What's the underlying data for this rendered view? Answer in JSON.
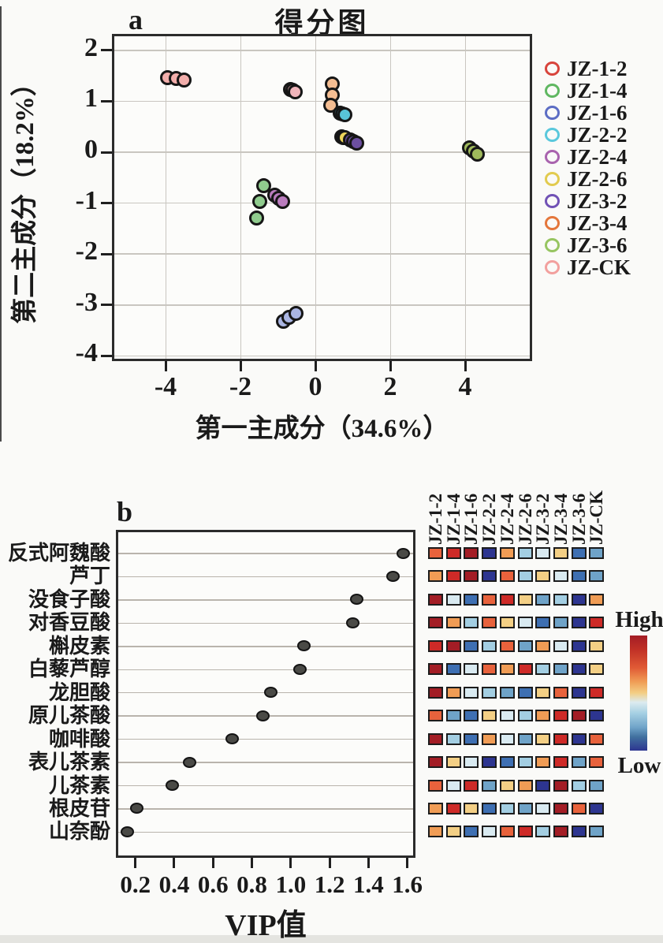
{
  "panel_a": {
    "label": "a",
    "title": "得分图",
    "x_axis": {
      "title": "第一主成分（34.6%）"
    },
    "y_axis": {
      "title": "第二主成分（18.2%）"
    },
    "legend": [
      {
        "label": "JZ-1-2",
        "color": "#D8443C"
      },
      {
        "label": "JZ-1-4",
        "color": "#5FB761"
      },
      {
        "label": "JZ-1-6",
        "color": "#5C6DC4"
      },
      {
        "label": "JZ-2-2",
        "color": "#5AC8DC"
      },
      {
        "label": "JZ-2-4",
        "color": "#A963AE"
      },
      {
        "label": "JZ-2-6",
        "color": "#E2CB4F"
      },
      {
        "label": "JZ-3-2",
        "color": "#7152B5"
      },
      {
        "label": "JZ-3-4",
        "color": "#E4763B"
      },
      {
        "label": "JZ-3-6",
        "color": "#97C561"
      },
      {
        "label": "JZ-CK",
        "color": "#F2A09E"
      }
    ]
  },
  "panel_b": {
    "label": "b",
    "x_axis": {
      "title": "VIP值"
    },
    "colorbar": {
      "high": "High",
      "low": "Low"
    }
  },
  "chart_data": [
    {
      "type": "scatter",
      "title": "得分图",
      "xlabel": "第一主成分（34.6%）",
      "ylabel": "第二主成分（18.2%）",
      "xlim": [
        -5.4,
        5.8
      ],
      "ylim": [
        -4.1,
        2.3
      ],
      "xticks": [
        -4,
        -2,
        0,
        2,
        4
      ],
      "yticks": [
        2,
        1,
        0,
        -1,
        -2,
        -3,
        -4
      ],
      "xtick_labels": [
        "-4",
        "-2",
        "0",
        "2",
        "4"
      ],
      "ytick_labels": [
        "2",
        "1",
        "0",
        "-1",
        "-2",
        "-3",
        "-4"
      ],
      "grid": true,
      "legend_position": "right",
      "series": [
        {
          "name": "JZ-CK",
          "ring": "#F2A09E",
          "fill": "#F2AEAB",
          "points": [
            [
              -3.95,
              1.47
            ],
            [
              -3.72,
              1.44
            ],
            [
              -3.5,
              1.41
            ]
          ]
        },
        {
          "name": "JZ-1-2",
          "ring": "#D8443C",
          "fill": "#F0B4BA",
          "points": [
            [
              -0.66,
              1.23
            ],
            [
              -0.6,
              1.21
            ],
            [
              -0.54,
              1.19
            ]
          ]
        },
        {
          "name": "JZ-3-4",
          "ring": "#E4763B",
          "fill": "#F4BD92",
          "points": [
            [
              0.46,
              1.34
            ],
            [
              0.46,
              1.13
            ],
            [
              0.42,
              0.92
            ]
          ]
        },
        {
          "name": "JZ-2-2",
          "ring": "#5AC8DC",
          "fill": "#58C4D8",
          "points": [
            [
              0.66,
              0.77
            ],
            [
              0.72,
              0.75
            ],
            [
              0.78,
              0.73
            ]
          ]
        },
        {
          "name": "JZ-2-6",
          "ring": "#E2CB4F",
          "fill": "#EDD45A",
          "points": [
            [
              0.7,
              0.3
            ],
            [
              0.74,
              0.29
            ],
            [
              0.78,
              0.28
            ]
          ]
        },
        {
          "name": "JZ-3-2",
          "ring": "#7152B5",
          "fill": "#6C4FA0",
          "points": [
            [
              0.94,
              0.24
            ],
            [
              1.02,
              0.21
            ],
            [
              1.1,
              0.18
            ]
          ]
        },
        {
          "name": "JZ-3-6",
          "ring": "#97C561",
          "fill": "#9FB95C",
          "points": [
            [
              4.12,
              0.08
            ],
            [
              4.22,
              0.02
            ],
            [
              4.32,
              -0.04
            ]
          ]
        },
        {
          "name": "JZ-1-4",
          "ring": "#5FB761",
          "fill": "#90CC8E",
          "points": [
            [
              -1.38,
              -0.66
            ],
            [
              -1.48,
              -0.97
            ],
            [
              -1.57,
              -1.3
            ]
          ]
        },
        {
          "name": "JZ-2-4",
          "ring": "#A963AE",
          "fill": "#BA7CBE",
          "points": [
            [
              -1.08,
              -0.85
            ],
            [
              -0.98,
              -0.91
            ],
            [
              -0.88,
              -0.96
            ]
          ]
        },
        {
          "name": "JZ-1-6",
          "ring": "#5C6DC4",
          "fill": "#AAB5E2",
          "points": [
            [
              -0.85,
              -3.32
            ],
            [
              -0.7,
              -3.25
            ],
            [
              -0.52,
              -3.17
            ]
          ]
        }
      ]
    },
    {
      "type": "scatter",
      "xlabel": "VIP值",
      "categories": [
        "反式阿魏酸",
        "芦丁",
        "没食子酸",
        "对香豆酸",
        "槲皮素",
        "白藜芦醇",
        "龙胆酸",
        "原儿茶酸",
        "咖啡酸",
        "表儿茶素",
        "儿茶素",
        "根皮苷",
        "山奈酚"
      ],
      "values": [
        1.58,
        1.53,
        1.34,
        1.32,
        1.07,
        1.05,
        0.9,
        0.86,
        0.7,
        0.48,
        0.39,
        0.21,
        0.16
      ],
      "xticks": [
        0.2,
        0.4,
        0.6,
        0.8,
        1.0,
        1.2,
        1.4,
        1.6
      ],
      "xtick_labels": [
        "0.2",
        "0.4",
        "0.6",
        "0.8",
        "1.0",
        "1.2",
        "1.4",
        "1.6"
      ],
      "xlim": [
        0.1,
        1.75
      ],
      "grid": true,
      "dot_fill": "#4a4a46"
    },
    {
      "type": "heatmap",
      "columns": [
        "JZ-1-2",
        "JZ-1-4",
        "JZ-1-6",
        "JZ-2-2",
        "JZ-2-4",
        "JZ-2-6",
        "JZ-3-2",
        "JZ-3-4",
        "JZ-3-6",
        "JZ-CK"
      ],
      "rows": [
        "反式阿魏酸",
        "芦丁",
        "没食子酸",
        "对香豆酸",
        "槲皮素",
        "白藜芦醇",
        "龙胆酸",
        "原儿茶酸",
        "咖啡酸",
        "表儿茶素",
        "儿茶素",
        "根皮苷",
        "山奈酚"
      ],
      "palette": {
        "DR": "#A31D25",
        "R": "#CE2A27",
        "OR": "#E8623C",
        "O": "#F09C55",
        "T": "#F3CF85",
        "VL": "#D9EAF1",
        "LB": "#A3CEE2",
        "SB": "#6FA3C8",
        "MB": "#3E6FB2",
        "DB": "#2D3590"
      },
      "cells": [
        [
          "OR",
          "R",
          "DR",
          "DB",
          "O",
          "LB",
          "VL",
          "T",
          "MB",
          "SB"
        ],
        [
          "O",
          "R",
          "DR",
          "DB",
          "OR",
          "LB",
          "T",
          "VL",
          "MB",
          "SB"
        ],
        [
          "DR",
          "VL",
          "MB",
          "OR",
          "R",
          "T",
          "SB",
          "LB",
          "DB",
          "O"
        ],
        [
          "DR",
          "O",
          "LB",
          "OR",
          "T",
          "VL",
          "MB",
          "SB",
          "DB",
          "R"
        ],
        [
          "R",
          "DR",
          "MB",
          "LB",
          "OR",
          "SB",
          "O",
          "VL",
          "DB",
          "T"
        ],
        [
          "DR",
          "MB",
          "VL",
          "OR",
          "O",
          "R",
          "LB",
          "SB",
          "DB",
          "T"
        ],
        [
          "DR",
          "O",
          "VL",
          "LB",
          "SB",
          "MB",
          "T",
          "OR",
          "DB",
          "R"
        ],
        [
          "OR",
          "SB",
          "MB",
          "T",
          "VL",
          "LB",
          "O",
          "R",
          "DR",
          "DB"
        ],
        [
          "DR",
          "LB",
          "MB",
          "O",
          "VL",
          "SB",
          "T",
          "R",
          "DB",
          "OR"
        ],
        [
          "DR",
          "T",
          "VL",
          "DB",
          "MB",
          "LB",
          "O",
          "R",
          "SB",
          "OR"
        ],
        [
          "OR",
          "VL",
          "R",
          "SB",
          "T",
          "O",
          "DB",
          "DR",
          "LB",
          "SB"
        ],
        [
          "O",
          "R",
          "T",
          "MB",
          "LB",
          "SB",
          "VL",
          "DR",
          "OR",
          "DB"
        ],
        [
          "O",
          "T",
          "MB",
          "VL",
          "OR",
          "R",
          "LB",
          "DR",
          "DB",
          "SB"
        ]
      ],
      "colorbar": {
        "high": "High",
        "low": "Low",
        "gradient": [
          "#A31D25 0%",
          "#C03026 12%",
          "#E05A35 28%",
          "#F09C55 40%",
          "#F3CF85 50%",
          "#DCEBF0 58%",
          "#A3CEE2 68%",
          "#6FA3C8 80%",
          "#41719F 88%",
          "#2D3590 100%"
        ]
      }
    }
  ]
}
